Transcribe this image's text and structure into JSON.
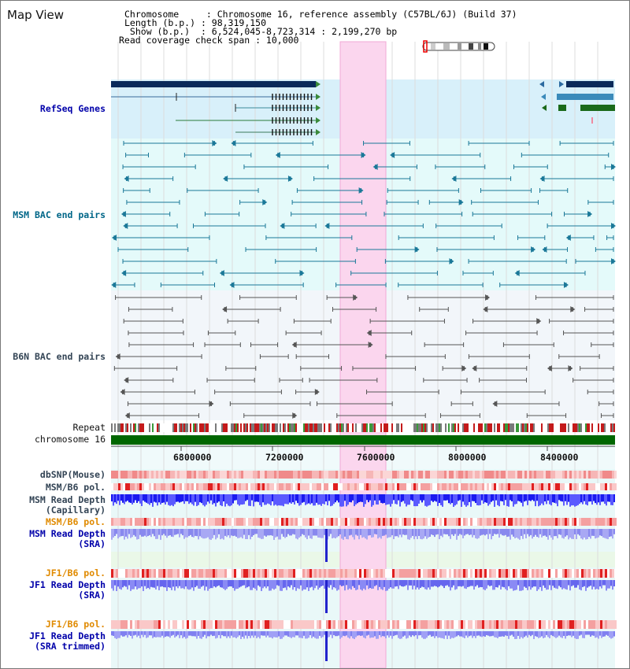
{
  "panel": {
    "title": "Map View"
  },
  "info": {
    "line1_key": "Chromosome     ",
    "line1_val": ": Chromosome 16, reference assembly (C57BL/6J) (Build 37)",
    "line2_key": "Length (b.p.) ",
    "line2_val": ": 98,319,150",
    "line3_key": " Show (b.p.)  ",
    "line3_val": ": 6,524,045-8,723,314 : 2,199,270 bp",
    "line4": "Read coverage check span : 10,000"
  },
  "tracks": {
    "refseq": "RefSeq Genes",
    "msm_bac": "MSM BAC end pairs",
    "b6n_bac": "B6N BAC end pairs",
    "repeat": "Repeat",
    "chromosome": "chromosome 16",
    "dbsnp": "dbSNP(Mouse)",
    "msm_pol1": "MSM/B6 pol.",
    "msm_depth_cap_1": "MSM Read Depth",
    "msm_depth_cap_2": "(Capillary)",
    "msm_pol2": "MSM/B6 pol.",
    "msm_depth_sra_1": "MSM Read Depth",
    "msm_depth_sra_2": "(SRA)",
    "jf1_pol1": "JF1/B6 pol.",
    "jf1_depth_sra_1": "JF1 Read Depth",
    "jf1_depth_sra_2": "(SRA)",
    "jf1_pol2": "JF1/B6 pol.",
    "jf1_depth_trim_1": "JF1 Read Depth",
    "jf1_depth_trim_2": "(SRA trimmed)"
  },
  "axis": {
    "ticks": [
      "6800000",
      "7200000",
      "7600000",
      "8000000",
      "8400000"
    ]
  },
  "colors": {
    "refseq_bg": "#d8f0fa",
    "msm_bg": "#e4fafa",
    "b6n_bg": "#f2f6fa",
    "highlight": "#fbd6ee",
    "gene": "#0a2a5a",
    "msm_pair": "#1a7898",
    "b6n_pair": "#555555",
    "chromosome": "#006600"
  }
}
